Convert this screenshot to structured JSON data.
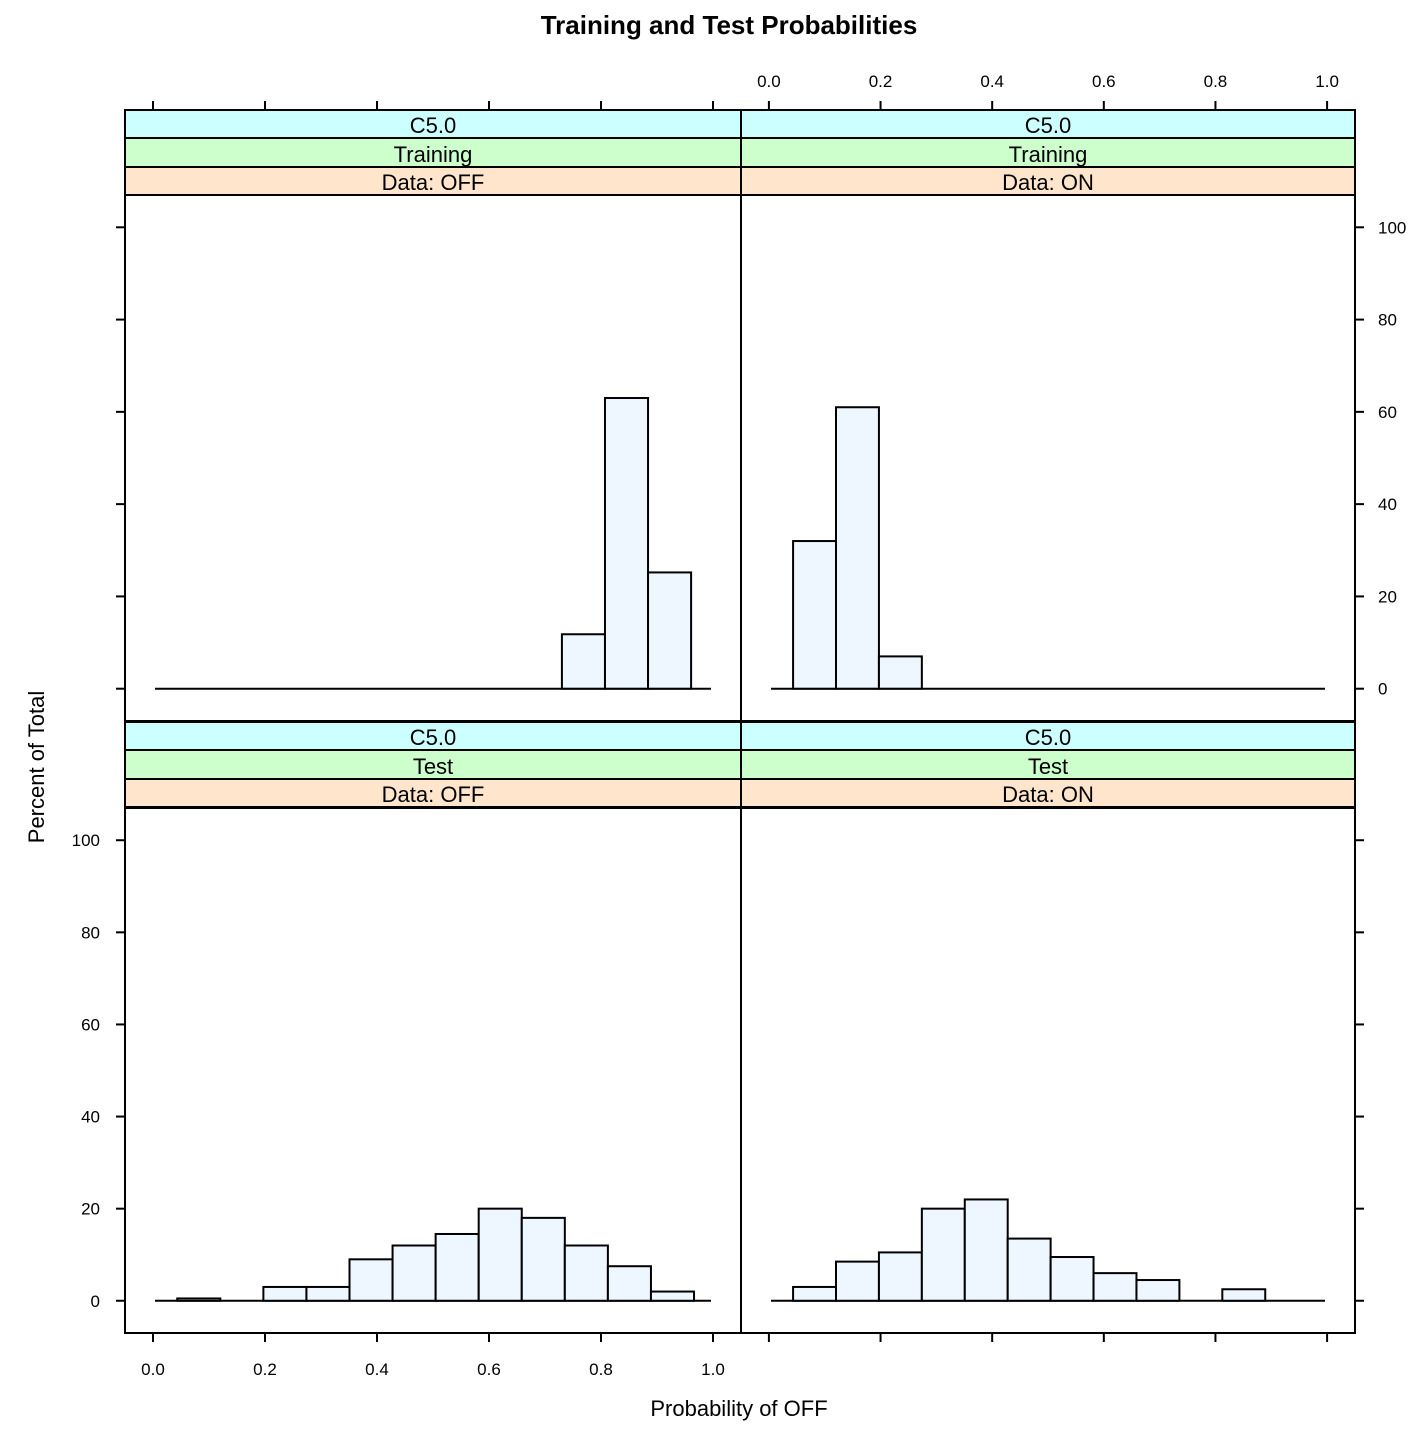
{
  "chart_data": {
    "type": "bar",
    "title": "Training and Test Probabilities",
    "xlabel": "Probability of OFF",
    "ylabel": "Percent of Total",
    "xlim": [
      -0.05,
      1.05
    ],
    "ylim": [
      -7,
      107
    ],
    "x_ticks": [
      "0.0",
      "0.2",
      "0.4",
      "0.6",
      "0.8",
      "1.0"
    ],
    "y_ticks": [
      "0",
      "20",
      "40",
      "60",
      "80",
      "100"
    ],
    "grid": false,
    "colors": {
      "bar_fill": "#EEF6FF",
      "strip_model": "#CCFFFF",
      "strip_set": "#CCFFCC",
      "strip_data": "#FFE5CC",
      "line": "#000000"
    },
    "panels": [
      {
        "strips": [
          "C5.0",
          "Training",
          "Data: OFF"
        ],
        "bin_width": 0.0769,
        "bins": [
          {
            "start": 0.7302,
            "value": 11.8
          },
          {
            "start": 0.8071,
            "value": 63.0
          },
          {
            "start": 0.884,
            "value": 25.2
          }
        ]
      },
      {
        "strips": [
          "C5.0",
          "Training",
          "Data: ON"
        ],
        "bin_width": 0.0769,
        "bins": [
          {
            "start": 0.0433,
            "value": 32.0
          },
          {
            "start": 0.1202,
            "value": 61.0
          },
          {
            "start": 0.1971,
            "value": 7.0
          }
        ]
      },
      {
        "strips": [
          "C5.0",
          "Test",
          "Data: OFF"
        ],
        "bin_width": 0.0769,
        "bins": [
          {
            "start": 0.0433,
            "value": 0.5
          },
          {
            "start": 0.1971,
            "value": 3.0
          },
          {
            "start": 0.274,
            "value": 3.0
          },
          {
            "start": 0.3509,
            "value": 9.0
          },
          {
            "start": 0.4278,
            "value": 12.0
          },
          {
            "start": 0.5047,
            "value": 14.5
          },
          {
            "start": 0.5816,
            "value": 20.0
          },
          {
            "start": 0.6585,
            "value": 18.0
          },
          {
            "start": 0.7354,
            "value": 12.0
          },
          {
            "start": 0.8123,
            "value": 7.5
          },
          {
            "start": 0.8892,
            "value": 2.0
          }
        ]
      },
      {
        "strips": [
          "C5.0",
          "Test",
          "Data: ON"
        ],
        "bin_width": 0.0769,
        "bins": [
          {
            "start": 0.0433,
            "value": 3.0
          },
          {
            "start": 0.1202,
            "value": 8.5
          },
          {
            "start": 0.1971,
            "value": 10.5
          },
          {
            "start": 0.274,
            "value": 20.0
          },
          {
            "start": 0.3509,
            "value": 22.0
          },
          {
            "start": 0.4278,
            "value": 13.5
          },
          {
            "start": 0.5047,
            "value": 9.5
          },
          {
            "start": 0.5816,
            "value": 6.0
          },
          {
            "start": 0.6585,
            "value": 4.5
          },
          {
            "start": 0.8123,
            "value": 2.5
          }
        ]
      }
    ]
  }
}
